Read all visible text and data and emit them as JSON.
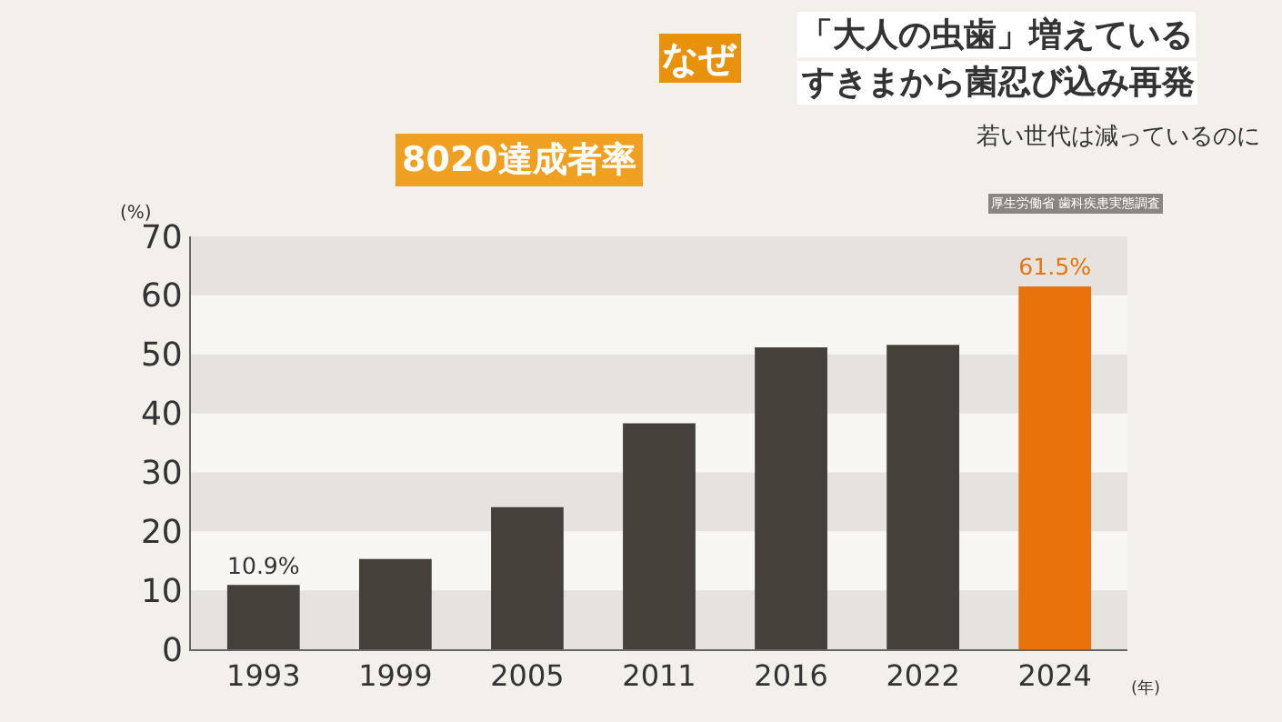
{
  "chart_data": {
    "type": "bar",
    "title": "8020達成者率",
    "ylabel": "(%)",
    "xlabel": "(年)",
    "categories": [
      "1993",
      "1999",
      "2005",
      "2011",
      "2016",
      "2022",
      "2024"
    ],
    "values": [
      10.9,
      15.3,
      24.1,
      38.3,
      51.2,
      51.6,
      61.5
    ],
    "colors": [
      "#45413a",
      "#45413a",
      "#45413a",
      "#45413a",
      "#45413a",
      "#45413a",
      "#e8720c"
    ],
    "value_labels": [
      "10.9%",
      null,
      null,
      null,
      null,
      null,
      "61.5%"
    ],
    "ylim": [
      0,
      70
    ],
    "yticks": [
      0,
      10,
      20,
      30,
      40,
      50,
      60,
      70
    ],
    "bands": [
      {
        "axis": "y",
        "from": 0,
        "to": 10,
        "color": "#e6e3df"
      },
      {
        "axis": "y",
        "from": 20,
        "to": 30,
        "color": "#e6e3df"
      },
      {
        "axis": "y",
        "from": 40,
        "to": 50,
        "color": "#e6e3df"
      },
      {
        "axis": "y",
        "from": 60,
        "to": 70,
        "color": "#e6e3df"
      }
    ],
    "annotations": [
      "なぜ",
      "「大人の虫歯」増えている",
      "すきまから菌忍び込み再発",
      "若い世代は減っているのに",
      "厚生労働省 歯科疾患実態調査"
    ]
  }
}
